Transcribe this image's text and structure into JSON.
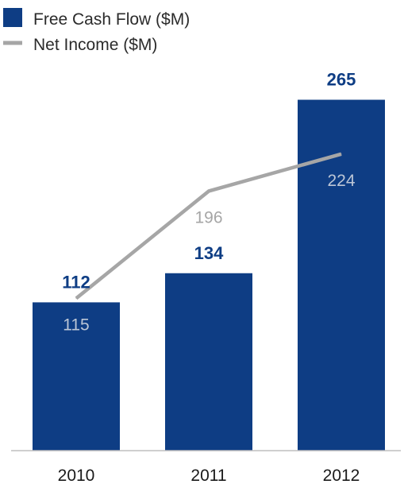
{
  "chart_data": {
    "type": "bar",
    "categories": [
      "2010",
      "2011",
      "2012"
    ],
    "series": [
      {
        "name": "Free Cash Flow ($M)",
        "type": "bar",
        "values": [
          112,
          134,
          265
        ],
        "labels": [
          "112",
          "134",
          "265"
        ]
      },
      {
        "name": "Net Income ($M)",
        "type": "line",
        "values": [
          115,
          196,
          224
        ],
        "labels": [
          "115",
          "196",
          "224"
        ]
      }
    ],
    "title": "",
    "xlabel": "",
    "ylabel": "",
    "ylim": [
      0,
      280
    ],
    "grid": false,
    "legend": "top-left",
    "colors": {
      "bar": "#0e3d84",
      "line": "#a6a6a6",
      "axis": "#bfbfbf",
      "bar_label": "#0e3d84",
      "line_label_on_bar": "#bcc6d6",
      "line_label_off_bar": "#a6a6a6"
    }
  }
}
